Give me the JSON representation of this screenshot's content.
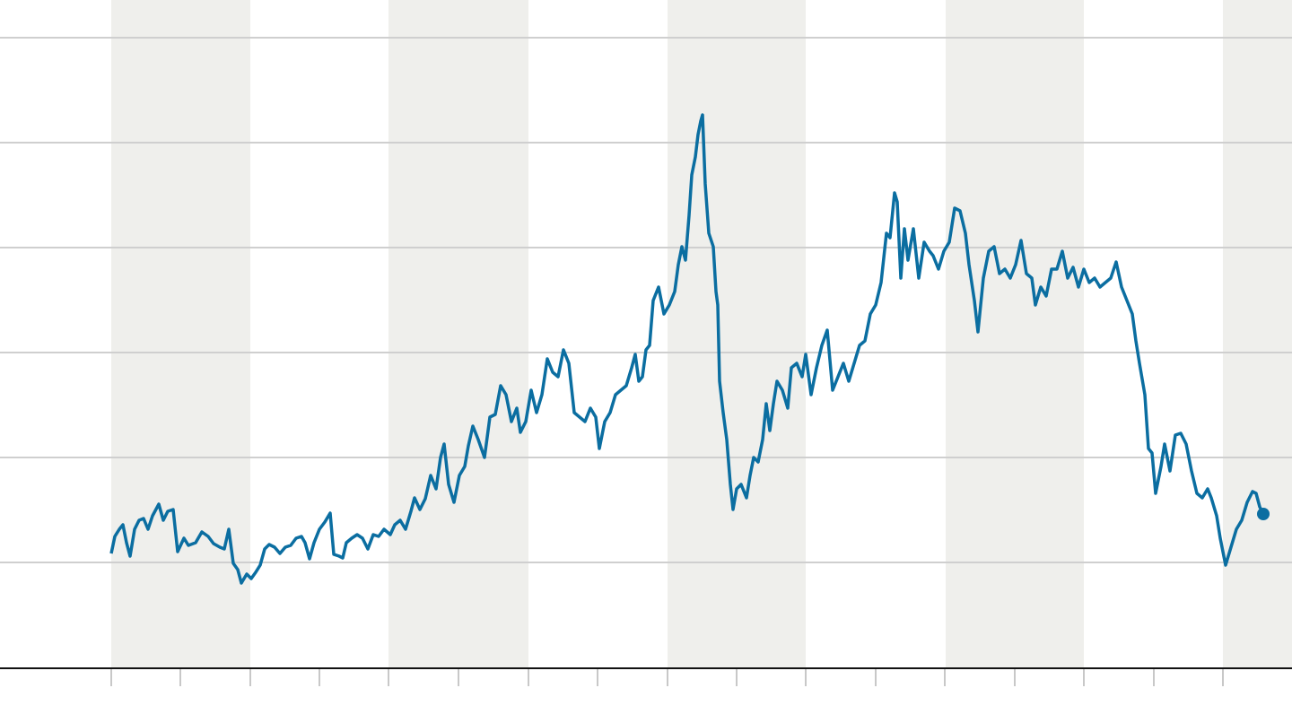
{
  "chart_data": {
    "type": "line",
    "xlim": [
      -124,
      1316
    ],
    "ylim": [
      0,
      745
    ],
    "xticks": [
      0,
      77,
      155,
      232,
      309,
      387,
      465,
      542,
      620,
      697,
      774,
      852,
      929,
      1007,
      1084,
      1162,
      1239
    ],
    "yticks": [
      118,
      235,
      352,
      469,
      586,
      703
    ],
    "grid": true,
    "bands": [
      [
        0,
        155
      ],
      [
        309,
        465
      ],
      [
        620,
        774
      ],
      [
        930,
        1084
      ],
      [
        1239,
        1316
      ]
    ],
    "band_color": "#efefec",
    "series": [
      {
        "color": "#0b6ea1",
        "x": [
          0,
          4,
          9,
          13,
          17,
          21,
          26,
          31,
          36,
          41,
          46,
          53,
          58,
          63,
          69,
          74,
          81,
          86,
          94,
          101,
          108,
          114,
          121,
          126,
          131,
          136,
          141,
          145,
          151,
          156,
          161,
          166,
          171,
          176,
          182,
          188,
          194,
          200,
          206,
          212,
          216,
          221,
          226,
          232,
          238,
          244,
          248,
          254,
          258,
          262,
          268,
          274,
          280,
          286,
          292,
          298,
          304,
          311,
          316,
          322,
          328,
          334,
          338,
          344,
          350,
          356,
          362,
          367,
          371,
          376,
          382,
          388,
          394,
          398,
          403,
          409,
          416,
          422,
          428,
          434,
          440,
          446,
          452,
          456,
          462,
          468,
          474,
          480,
          486,
          492,
          498,
          504,
          510,
          516,
          522,
          528,
          534,
          540,
          544,
          550,
          556,
          562,
          568,
          574,
          580,
          584,
          588,
          592,
          596,
          600,
          604,
          610,
          616,
          622,
          628,
          632,
          636,
          640,
          644,
          647,
          651,
          654,
          657,
          659,
          662,
          666,
          671,
          674,
          676,
          678,
          682,
          686,
          690,
          693,
          697,
          702,
          708,
          712,
          716,
          721,
          726,
          730,
          734,
          738,
          742,
          748,
          754,
          758,
          764,
          770,
          774,
          780,
          786,
          792,
          798,
          804,
          810,
          816,
          822,
          828,
          834,
          840,
          846,
          852,
          858,
          864,
          868,
          873,
          876,
          880,
          884,
          888,
          894,
          900,
          906,
          912,
          916,
          922,
          928,
          934,
          940,
          946,
          952,
          956,
          962,
          966,
          972,
          978,
          984,
          990,
          996,
          1002,
          1008,
          1014,
          1020,
          1026,
          1030,
          1036,
          1042,
          1048,
          1054,
          1060,
          1066,
          1072,
          1078,
          1084,
          1090,
          1096,
          1102,
          1108,
          1114,
          1120,
          1126,
          1132,
          1138,
          1142,
          1146,
          1152,
          1156,
          1160,
          1164,
          1170,
          1174,
          1180,
          1186,
          1192,
          1198,
          1204,
          1210,
          1216,
          1222,
          1226,
          1232,
          1236,
          1242,
          1248,
          1254,
          1260,
          1266,
          1272,
          1276,
          1280,
          1284
        ],
        "values": [
          128,
          147,
          155,
          160,
          140,
          125,
          155,
          165,
          167,
          155,
          170,
          183,
          165,
          175,
          177,
          130,
          145,
          137,
          140,
          152,
          147,
          139,
          135,
          133,
          155,
          117,
          110,
          95,
          105,
          100,
          107,
          115,
          133,
          138,
          135,
          128,
          135,
          137,
          145,
          147,
          140,
          122,
          140,
          155,
          163,
          173,
          127,
          125,
          123,
          140,
          145,
          149,
          145,
          133,
          149,
          147,
          155,
          149,
          160,
          165,
          155,
          175,
          190,
          177,
          189,
          215,
          200,
          235,
          250,
          205,
          185,
          215,
          225,
          248,
          270,
          255,
          235,
          280,
          283,
          315,
          305,
          275,
          290,
          263,
          275,
          310,
          285,
          305,
          345,
          330,
          325,
          355,
          340,
          285,
          280,
          275,
          290,
          280,
          245,
          275,
          285,
          305,
          310,
          315,
          335,
          350,
          320,
          325,
          355,
          360,
          410,
          425,
          395,
          405,
          420,
          450,
          470,
          455,
          505,
          550,
          570,
          595,
          610,
          617,
          540,
          485,
          470,
          420,
          405,
          320,
          285,
          255,
          205,
          177,
          200,
          205,
          190,
          215,
          235,
          230,
          255,
          295,
          265,
          295,
          320,
          310,
          290,
          335,
          340,
          325,
          350,
          305,
          335,
          360,
          377,
          310,
          325,
          340,
          320,
          340,
          360,
          365,
          395,
          405,
          430,
          485,
          480,
          530,
          520,
          435,
          490,
          455,
          490,
          435,
          475,
          465,
          460,
          445,
          465,
          475,
          513,
          510,
          485,
          450,
          410,
          375,
          435,
          465,
          470,
          440,
          445,
          435,
          450,
          477,
          440,
          435,
          405,
          425,
          415,
          445,
          445,
          465,
          435,
          447,
          425,
          445,
          430,
          435,
          425,
          430,
          435,
          453,
          425,
          410,
          395,
          365,
          340,
          305,
          245,
          240,
          195,
          225,
          250,
          220,
          260,
          262,
          250,
          220,
          195,
          190,
          200,
          190,
          170,
          145,
          115,
          135,
          155,
          165,
          185,
          197,
          195,
          180,
          172
        ]
      }
    ]
  }
}
